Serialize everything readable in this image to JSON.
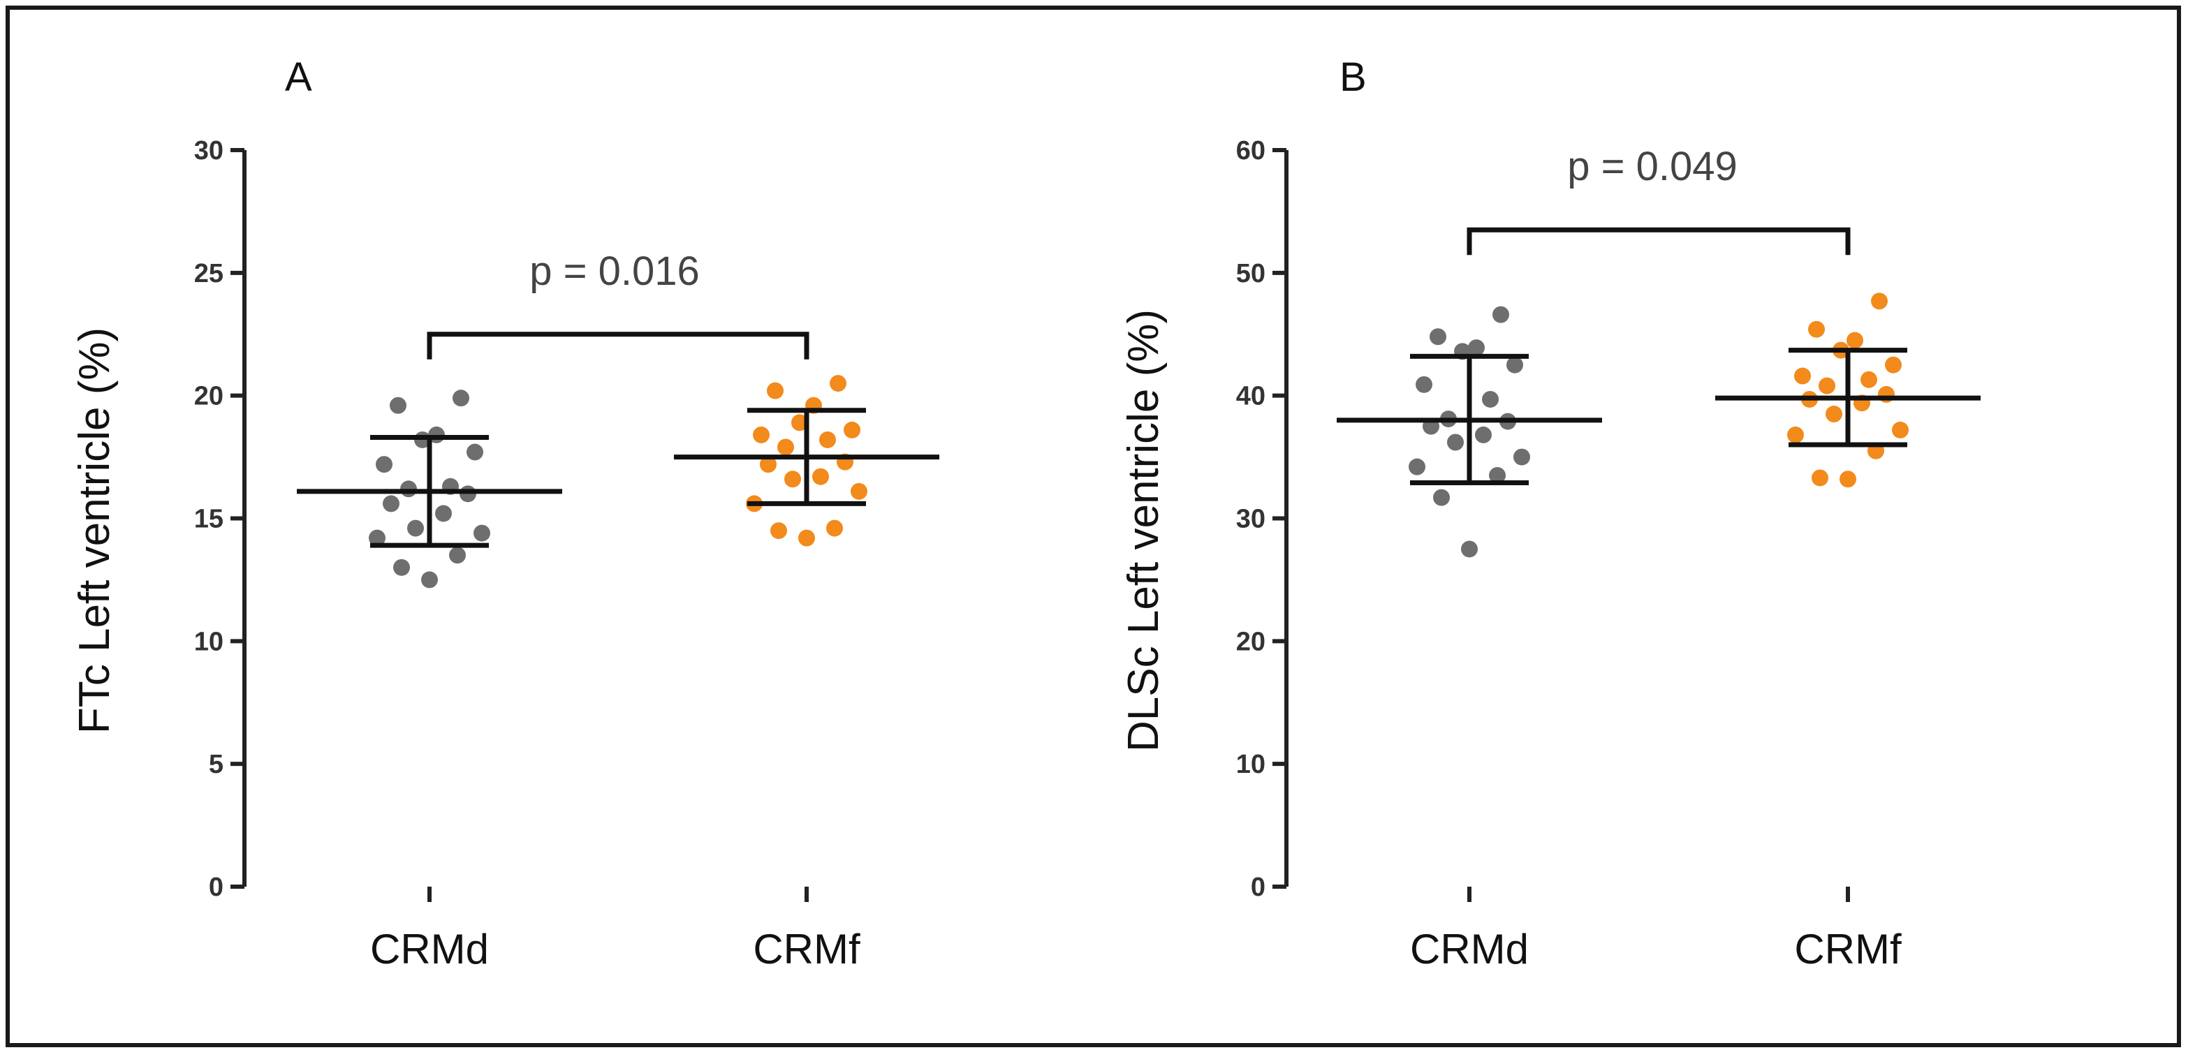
{
  "colors": {
    "CRMd": "#6e6e6e",
    "CRMf": "#f28a1c",
    "stat": "#111111",
    "axis": "#222222"
  },
  "chart_data": [
    {
      "type": "scatter",
      "panel": "A",
      "ylabel": "FTc  Left ventricle (%)",
      "ylim": [
        0,
        30
      ],
      "yticks": [
        0,
        5,
        10,
        15,
        20,
        25,
        30
      ],
      "categories": [
        "CRMd",
        "CRMf"
      ],
      "series": [
        {
          "name": "CRMd",
          "mean": 16.1,
          "sd_low": 13.9,
          "sd_high": 18.3,
          "points": [
            12.5,
            13.0,
            13.5,
            14.2,
            14.4,
            14.6,
            15.2,
            15.6,
            16.0,
            16.2,
            16.3,
            17.2,
            17.7,
            18.2,
            18.4,
            19.6,
            19.9
          ]
        },
        {
          "name": "CRMf",
          "mean": 17.5,
          "sd_low": 15.6,
          "sd_high": 19.4,
          "points": [
            14.2,
            14.5,
            14.6,
            15.6,
            16.1,
            16.6,
            16.7,
            17.2,
            17.3,
            17.9,
            18.2,
            18.4,
            18.6,
            18.9,
            19.6,
            20.2,
            20.5
          ]
        }
      ],
      "significance": {
        "label": "p = 0.016",
        "level": 22.5
      }
    },
    {
      "type": "scatter",
      "panel": "B",
      "ylabel": "DLSc  Left ventricle (%)",
      "ylim": [
        0,
        60
      ],
      "yticks": [
        0,
        10,
        20,
        30,
        40,
        50,
        60
      ],
      "categories": [
        "CRMd",
        "CRMf"
      ],
      "series": [
        {
          "name": "CRMd",
          "mean": 38.0,
          "sd_low": 32.9,
          "sd_high": 43.2,
          "points": [
            27.5,
            31.7,
            33.5,
            34.2,
            35.0,
            36.2,
            36.8,
            37.5,
            37.9,
            38.1,
            39.7,
            40.9,
            42.5,
            43.6,
            43.9,
            44.8,
            46.6
          ]
        },
        {
          "name": "CRMf",
          "mean": 39.8,
          "sd_low": 36.0,
          "sd_high": 43.7,
          "points": [
            33.2,
            33.3,
            35.5,
            36.8,
            37.2,
            38.5,
            39.4,
            39.7,
            40.1,
            40.8,
            41.3,
            41.6,
            42.5,
            43.7,
            44.5,
            45.4,
            47.7
          ]
        }
      ],
      "significance": {
        "label": "p = 0.049",
        "level": 53.5
      }
    }
  ]
}
